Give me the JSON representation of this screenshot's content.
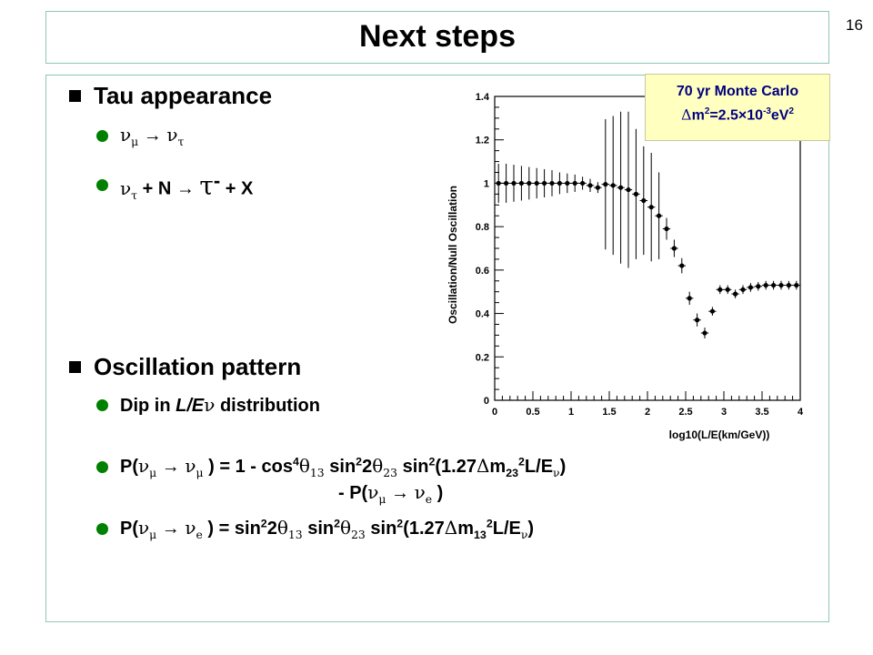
{
  "slide_number": "16",
  "title": "Next steps",
  "bullets": {
    "tau_heading": "Tau appearance",
    "osc_heading": "Oscillation pattern",
    "dip_text_a": "Dip in ",
    "dip_text_b": "L/E",
    "dip_text_c": " distribution",
    "formula_cont": "- P("
  },
  "annotation": {
    "line1": "70 yr Monte Carlo",
    "line2_a": "m",
    "line2_b": "=2.5",
    "line2_c": "10",
    "line2_d": "eV"
  },
  "chart_data": {
    "type": "scatter",
    "ylabel": "Oscillation/Null Oscillation",
    "xlabel": "log10(L/E(km/GeV))",
    "xlim": [
      0,
      4
    ],
    "ylim": [
      0,
      1.4
    ],
    "x_ticks": [
      "0",
      "0.5",
      "1",
      "1.5",
      "2",
      "2.5",
      "3",
      "3.5",
      "4"
    ],
    "y_ticks": [
      "0",
      "0.2",
      "0.4",
      "0.6",
      "0.8",
      "1",
      "1.2",
      "1.4"
    ],
    "points": [
      {
        "x": 0.05,
        "y": 1.0,
        "e": 0.09
      },
      {
        "x": 0.15,
        "y": 1.0,
        "e": 0.09
      },
      {
        "x": 0.25,
        "y": 1.0,
        "e": 0.085
      },
      {
        "x": 0.35,
        "y": 1.0,
        "e": 0.08
      },
      {
        "x": 0.45,
        "y": 1.0,
        "e": 0.075
      },
      {
        "x": 0.55,
        "y": 1.0,
        "e": 0.07
      },
      {
        "x": 0.65,
        "y": 1.0,
        "e": 0.065
      },
      {
        "x": 0.75,
        "y": 1.0,
        "e": 0.06
      },
      {
        "x": 0.85,
        "y": 1.0,
        "e": 0.05
      },
      {
        "x": 0.95,
        "y": 1.0,
        "e": 0.045
      },
      {
        "x": 1.05,
        "y": 1.0,
        "e": 0.04
      },
      {
        "x": 1.15,
        "y": 1.0,
        "e": 0.03
      },
      {
        "x": 1.25,
        "y": 0.99,
        "e": 0.03
      },
      {
        "x": 1.35,
        "y": 0.98,
        "e": 0.025
      },
      {
        "x": 1.45,
        "y": 0.995,
        "e": 0.3
      },
      {
        "x": 1.55,
        "y": 0.99,
        "e": 0.32
      },
      {
        "x": 1.65,
        "y": 0.98,
        "e": 0.35
      },
      {
        "x": 1.75,
        "y": 0.97,
        "e": 0.36
      },
      {
        "x": 1.85,
        "y": 0.95,
        "e": 0.3
      },
      {
        "x": 1.95,
        "y": 0.92,
        "e": 0.25
      },
      {
        "x": 2.05,
        "y": 0.89,
        "e": 0.25
      },
      {
        "x": 2.15,
        "y": 0.85,
        "e": 0.2
      },
      {
        "x": 2.25,
        "y": 0.79,
        "e": 0.05
      },
      {
        "x": 2.35,
        "y": 0.7,
        "e": 0.04
      },
      {
        "x": 2.45,
        "y": 0.62,
        "e": 0.035
      },
      {
        "x": 2.55,
        "y": 0.47,
        "e": 0.03
      },
      {
        "x": 2.65,
        "y": 0.37,
        "e": 0.03
      },
      {
        "x": 2.75,
        "y": 0.31,
        "e": 0.025
      },
      {
        "x": 2.85,
        "y": 0.41,
        "e": 0.02
      },
      {
        "x": 2.95,
        "y": 0.51,
        "e": 0.02
      },
      {
        "x": 3.05,
        "y": 0.51,
        "e": 0.02
      },
      {
        "x": 3.15,
        "y": 0.49,
        "e": 0.02
      },
      {
        "x": 3.25,
        "y": 0.51,
        "e": 0.02
      },
      {
        "x": 3.35,
        "y": 0.52,
        "e": 0.02
      },
      {
        "x": 3.45,
        "y": 0.525,
        "e": 0.02
      },
      {
        "x": 3.55,
        "y": 0.53,
        "e": 0.02
      },
      {
        "x": 3.65,
        "y": 0.53,
        "e": 0.02
      },
      {
        "x": 3.75,
        "y": 0.53,
        "e": 0.02
      },
      {
        "x": 3.85,
        "y": 0.53,
        "e": 0.02
      },
      {
        "x": 3.95,
        "y": 0.53,
        "e": 0.02
      }
    ]
  },
  "colors": {
    "bullet_square": "#000000",
    "bullet_dot": "#008000",
    "box_border": "#8fc7b0",
    "annotation_bg": "#ffffc0",
    "annotation_text": "#000080"
  }
}
